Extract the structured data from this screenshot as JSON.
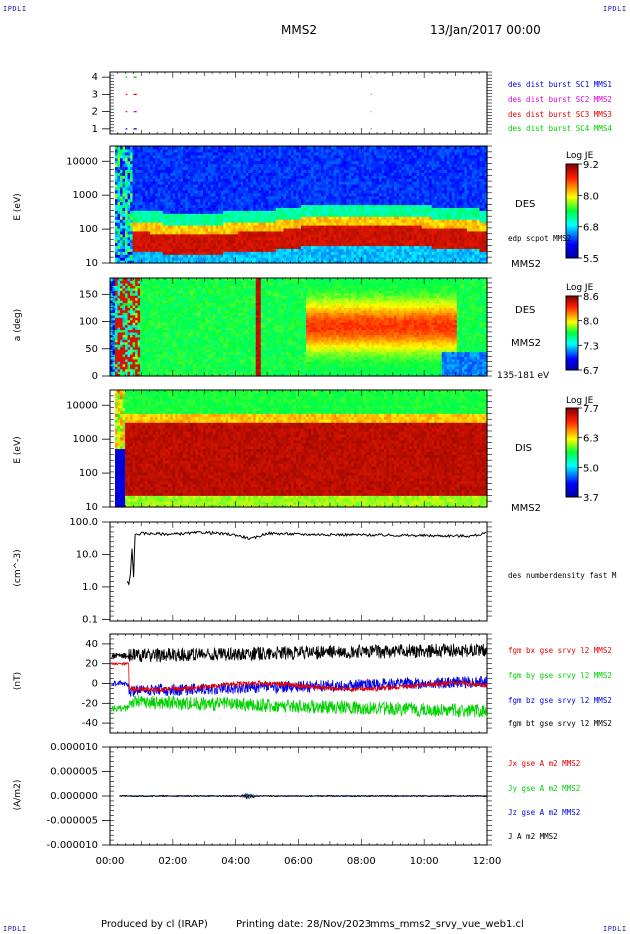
{
  "header": {
    "corner_label": "IPDLI",
    "title": "MMS2",
    "date": "13/Jan/2017 00:00"
  },
  "footer": {
    "produced": "Produced by cl (IRAP)",
    "printing": "Printing date: 28/Nov/2023",
    "file": "mms_mms2_srvy_vue_web1.cl"
  },
  "colors": {
    "black": "#000000",
    "red": "#e60000",
    "green": "#00d200",
    "blue": "#0000e6",
    "magenta": "#dc00dc"
  },
  "chart_data": [
    {
      "type": "line",
      "panel": "burst-flags",
      "yticks": [
        "1",
        "2",
        "3",
        "4"
      ],
      "ylim": [
        0.7,
        4.3
      ],
      "series": [
        {
          "name": "des dist burst SC1 MMS1",
          "color": "#0000e6",
          "y": 1
        },
        {
          "name": "des dist burst SC2 MMS2",
          "color": "#dc00dc",
          "y": 2
        },
        {
          "name": "des dist burst SC3 MMS3",
          "color": "#e60000",
          "y": 3
        },
        {
          "name": "des dist burst SC4 MMS4",
          "color": "#00d200",
          "y": 4
        }
      ]
    },
    {
      "type": "heatmap",
      "panel": "des-energy",
      "ylabel": "E (eV)",
      "scale": "log",
      "yticks": [
        "10",
        "100",
        "1000",
        "10000"
      ],
      "label": "DES",
      "sublabel": "MMS2",
      "overlay": "edp scpot MMS2",
      "colorbar": {
        "title": "Log JE",
        "ticks": [
          "9.2",
          "8.0",
          "6.8",
          "5.5"
        ]
      }
    },
    {
      "type": "heatmap",
      "panel": "des-pitch",
      "ylabel": "a (deg)",
      "yticks": [
        "0",
        "50",
        "100",
        "150"
      ],
      "ylim": [
        0,
        180
      ],
      "label": "DES",
      "sublabel": "MMS2",
      "note": "135-181 eV",
      "colorbar": {
        "title": "Log JE",
        "ticks": [
          "8.6",
          "8.0",
          "7.3",
          "6.7"
        ]
      }
    },
    {
      "type": "heatmap",
      "panel": "dis-energy",
      "ylabel": "E (eV)",
      "scale": "log",
      "yticks": [
        "10",
        "100",
        "1000",
        "10000"
      ],
      "label": "DIS",
      "sublabel": "MMS2",
      "colorbar": {
        "title": "Log JE",
        "ticks": [
          "7.7",
          "6.3",
          "5.0",
          "3.7"
        ]
      }
    },
    {
      "type": "line",
      "panel": "density",
      "ylabel": "(cm^-3)",
      "scale": "log",
      "yticks": [
        "0.1",
        "1.0",
        "10.0",
        "100.0"
      ],
      "series": [
        {
          "name": "des numberdensity fast M",
          "color": "#000000",
          "x_hours": [
            0.55,
            0.6,
            0.65,
            0.7,
            0.75,
            0.8,
            1.0,
            2.0,
            3.0,
            4.0,
            4.5,
            5.0,
            6.0,
            8.0,
            10.0,
            11.5,
            12.0
          ],
          "y": [
            1.5,
            1.2,
            2.5,
            15,
            2,
            40,
            45,
            42,
            48,
            40,
            30,
            45,
            42,
            40,
            38,
            37,
            45
          ]
        }
      ]
    },
    {
      "type": "line",
      "panel": "fgm",
      "ylabel": "(nT)",
      "yticks": [
        "-40",
        "-20",
        "0",
        "20",
        "40"
      ],
      "ylim": [
        -50,
        50
      ],
      "series": [
        {
          "name": "fgm bx gse srvy l2 MMS2",
          "color": "#e60000"
        },
        {
          "name": "fgm by gse srvy l2 MMS2",
          "color": "#00d200"
        },
        {
          "name": "fgm bz gse srvy l2 MMS2",
          "color": "#0000e6"
        },
        {
          "name": "fgm bt gse srvy l2 MMS2",
          "color": "#000000"
        }
      ]
    },
    {
      "type": "line",
      "panel": "current",
      "ylabel": "(A/m2)",
      "yticks": [
        "-0.000010",
        "-0.000005",
        "0.000000",
        "0.000005",
        "0.000010"
      ],
      "ylim": [
        -1e-05,
        1e-05
      ],
      "series": [
        {
          "name": "Jx gse A m2 MMS2",
          "color": "#e60000"
        },
        {
          "name": "Jy gse A m2 MMS2",
          "color": "#00d200"
        },
        {
          "name": "Jz gse A m2 MMS2",
          "color": "#0000e6"
        },
        {
          "name": "J A m2 MMS2",
          "color": "#000000"
        }
      ]
    }
  ],
  "xaxis": {
    "ticks": [
      "00:00",
      "02:00",
      "04:00",
      "06:00",
      "08:00",
      "10:00",
      "12:00"
    ],
    "range_hours": [
      0,
      12
    ]
  }
}
